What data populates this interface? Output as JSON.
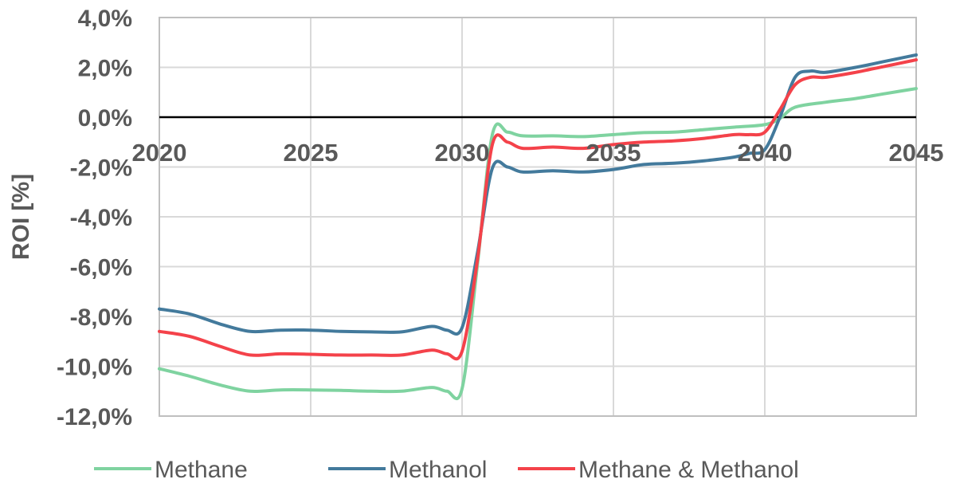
{
  "chart_data": {
    "type": "line",
    "title": "",
    "xlabel": "",
    "ylabel": "ROI [%]",
    "xlim": [
      2020,
      2045
    ],
    "ylim": [
      -12.0,
      4.0
    ],
    "x_ticks": [
      "2020",
      "2025",
      "2030",
      "2035",
      "2040",
      "2045"
    ],
    "y_ticks": [
      "4,0%",
      "2,0%",
      "0,0%",
      "-2,0%",
      "-4,0%",
      "-6,0%",
      "-8,0%",
      "-10,0%",
      "-12,0%"
    ],
    "grid": true,
    "legend_position": "bottom",
    "series": [
      {
        "name": "Methane",
        "color": "#7fd3a0",
        "points": [
          [
            2020,
            -10.1
          ],
          [
            2021,
            -10.4
          ],
          [
            2022,
            -10.75
          ],
          [
            2023,
            -11.0
          ],
          [
            2024,
            -10.95
          ],
          [
            2025,
            -10.95
          ],
          [
            2026,
            -10.97
          ],
          [
            2027,
            -11.0
          ],
          [
            2028,
            -11.0
          ],
          [
            2029,
            -10.85
          ],
          [
            2029.5,
            -11.0
          ],
          [
            2030,
            -10.9
          ],
          [
            2030.5,
            -6.0
          ],
          [
            2031,
            -0.7
          ],
          [
            2031.5,
            -0.6
          ],
          [
            2032,
            -0.75
          ],
          [
            2033,
            -0.75
          ],
          [
            2034,
            -0.78
          ],
          [
            2035,
            -0.7
          ],
          [
            2036,
            -0.62
          ],
          [
            2037,
            -0.6
          ],
          [
            2038,
            -0.5
          ],
          [
            2039,
            -0.4
          ],
          [
            2040,
            -0.3
          ],
          [
            2040.5,
            -0.05
          ],
          [
            2041,
            0.4
          ],
          [
            2042,
            0.6
          ],
          [
            2043,
            0.75
          ],
          [
            2044,
            0.95
          ],
          [
            2045,
            1.15
          ]
        ]
      },
      {
        "name": "Methanol",
        "color": "#437a9c",
        "points": [
          [
            2020,
            -7.7
          ],
          [
            2021,
            -7.9
          ],
          [
            2022,
            -8.3
          ],
          [
            2023,
            -8.6
          ],
          [
            2024,
            -8.55
          ],
          [
            2025,
            -8.55
          ],
          [
            2026,
            -8.6
          ],
          [
            2027,
            -8.62
          ],
          [
            2028,
            -8.62
          ],
          [
            2029,
            -8.4
          ],
          [
            2029.5,
            -8.55
          ],
          [
            2030,
            -8.45
          ],
          [
            2030.5,
            -5.5
          ],
          [
            2031,
            -2.05
          ],
          [
            2031.5,
            -2.0
          ],
          [
            2032,
            -2.2
          ],
          [
            2033,
            -2.15
          ],
          [
            2034,
            -2.2
          ],
          [
            2035,
            -2.1
          ],
          [
            2036,
            -1.9
          ],
          [
            2037,
            -1.85
          ],
          [
            2038,
            -1.75
          ],
          [
            2039,
            -1.6
          ],
          [
            2039.5,
            -1.45
          ],
          [
            2040,
            -1.3
          ],
          [
            2040.5,
            0.0
          ],
          [
            2041,
            1.6
          ],
          [
            2041.5,
            1.85
          ],
          [
            2042,
            1.8
          ],
          [
            2043,
            2.0
          ],
          [
            2044,
            2.25
          ],
          [
            2045,
            2.5
          ]
        ]
      },
      {
        "name": "Methane & Methanol",
        "color": "#f4424a",
        "points": [
          [
            2020,
            -8.6
          ],
          [
            2021,
            -8.8
          ],
          [
            2022,
            -9.2
          ],
          [
            2023,
            -9.55
          ],
          [
            2024,
            -9.5
          ],
          [
            2025,
            -9.52
          ],
          [
            2026,
            -9.55
          ],
          [
            2027,
            -9.55
          ],
          [
            2028,
            -9.55
          ],
          [
            2029,
            -9.35
          ],
          [
            2029.5,
            -9.5
          ],
          [
            2030,
            -9.4
          ],
          [
            2030.5,
            -5.8
          ],
          [
            2031,
            -1.1
          ],
          [
            2031.5,
            -1.0
          ],
          [
            2032,
            -1.25
          ],
          [
            2033,
            -1.2
          ],
          [
            2034,
            -1.25
          ],
          [
            2035,
            -1.1
          ],
          [
            2036,
            -1.0
          ],
          [
            2037,
            -0.95
          ],
          [
            2038,
            -0.85
          ],
          [
            2039,
            -0.7
          ],
          [
            2039.5,
            -0.7
          ],
          [
            2040,
            -0.6
          ],
          [
            2040.5,
            0.3
          ],
          [
            2041,
            1.3
          ],
          [
            2041.5,
            1.6
          ],
          [
            2042,
            1.6
          ],
          [
            2043,
            1.8
          ],
          [
            2044,
            2.05
          ],
          [
            2045,
            2.3
          ]
        ]
      }
    ]
  }
}
